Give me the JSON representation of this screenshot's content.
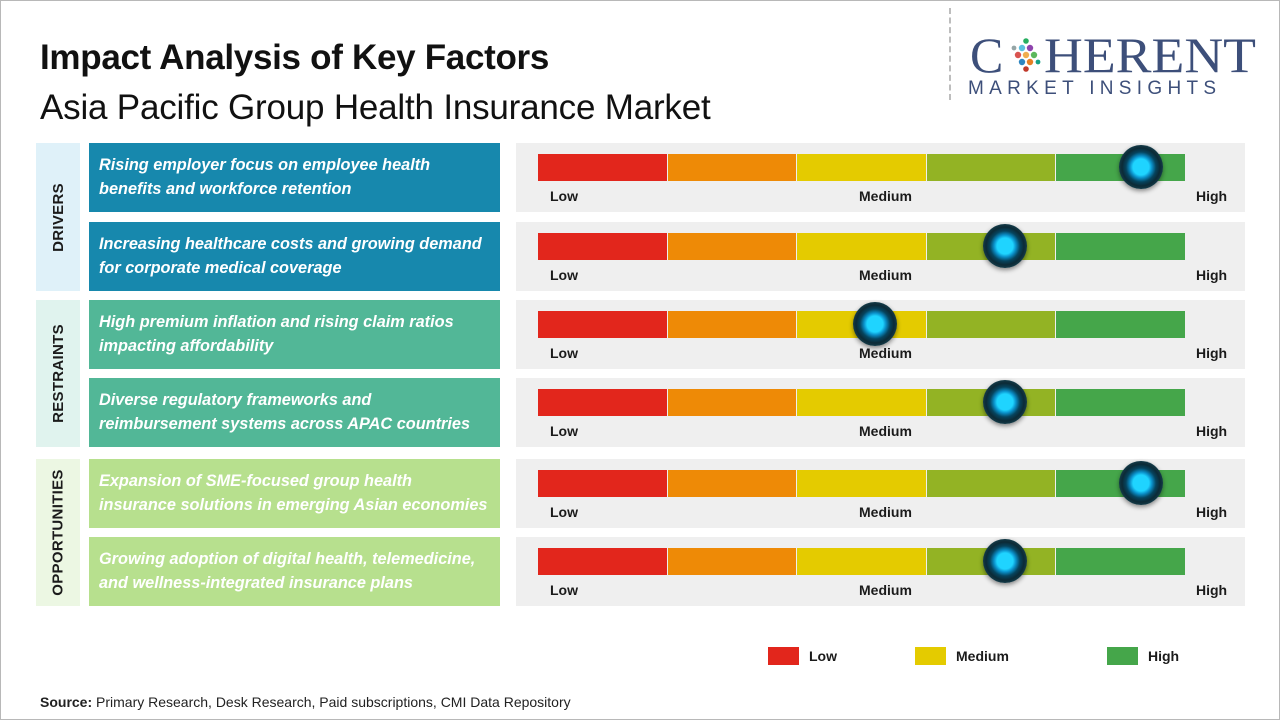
{
  "title": "Impact Analysis of Key Factors",
  "subtitle": "Asia Pacific Group Health Insurance Market",
  "logo": {
    "word": "COHERENT",
    "tagline": "MARKET INSIGHTS"
  },
  "colors": {
    "low": "#e2261c",
    "low_mid": "#ee8a06",
    "medium": "#e4cb00",
    "mid_high": "#93b324",
    "high": "#45a64a",
    "drivers": "#1788ad",
    "restraints": "#52b797",
    "opportunities": "#b7e08e",
    "drivers_tab": "#dff1f9",
    "restraints_tab": "#e0f3ee",
    "opportunities_tab": "#ecf7e3"
  },
  "chart_data": {
    "type": "gauge",
    "scale": [
      "Low",
      "Medium",
      "High"
    ],
    "scale_range": [
      0,
      1
    ],
    "categories": [
      {
        "name": "DRIVERS",
        "factors": [
          {
            "text": "Rising employer focus on employee health benefits and workforce retention",
            "impact": 0.93
          },
          {
            "text": "Increasing healthcare costs and growing demand for corporate medical coverage",
            "impact": 0.72
          }
        ]
      },
      {
        "name": "RESTRAINTS",
        "factors": [
          {
            "text": "High premium inflation and rising claim ratios impacting affordability",
            "impact": 0.52
          },
          {
            "text": "Diverse regulatory frameworks and reimbursement systems across APAC countries",
            "impact": 0.72
          }
        ]
      },
      {
        "name": "OPPORTUNITIES",
        "factors": [
          {
            "text": "Expansion of SME-focused group health insurance solutions in emerging Asian economies",
            "impact": 0.93
          },
          {
            "text": "Growing adoption of digital health, telemedicine, and wellness-integrated insurance plans",
            "impact": 0.72
          }
        ]
      }
    ],
    "legend": [
      "Low",
      "Medium",
      "High"
    ]
  },
  "source": {
    "label": "Source:",
    "text": " Primary Research, Desk Research, Paid subscriptions, CMI Data Repository"
  }
}
